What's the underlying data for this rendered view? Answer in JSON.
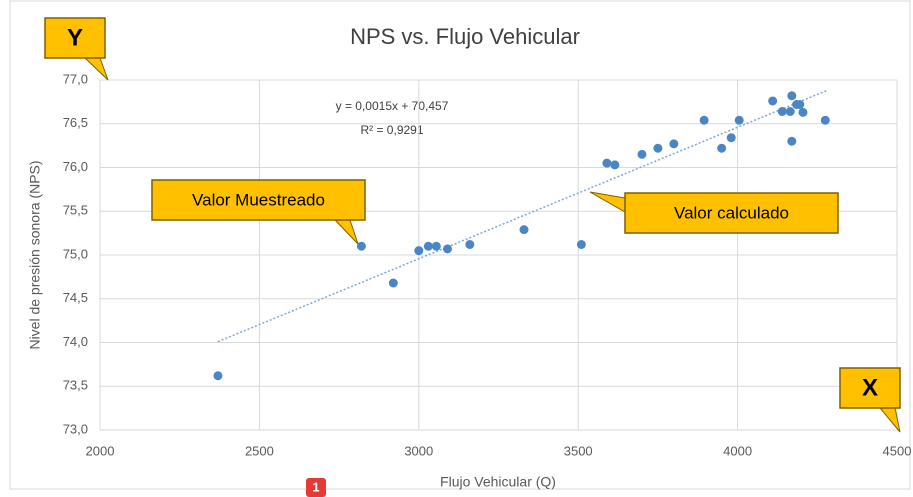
{
  "chart_data": {
    "type": "scatter",
    "title": "NPS vs. Flujo Vehicular",
    "x_label": "Flujo Vehicular (Q)",
    "y_label": "Nivel de presión sonora (NPS)",
    "color": "#4a86c5",
    "grid": true,
    "xlim": [
      2000,
      4500
    ],
    "xticks": [
      2000,
      2500,
      3000,
      3500,
      4000,
      4500
    ],
    "ylim": [
      73,
      77
    ],
    "yticks": [
      {
        "value": 73,
        "label": "73,0"
      },
      {
        "value": 73.5,
        "label": "73,5"
      },
      {
        "value": 74,
        "label": "74,0"
      },
      {
        "value": 74.5,
        "label": "74,5"
      },
      {
        "value": 75,
        "label": "75,0"
      },
      {
        "value": 75.5,
        "label": "75,5"
      },
      {
        "value": 76,
        "label": "76,0"
      },
      {
        "value": 76.5,
        "label": "76,5"
      },
      {
        "value": 77,
        "label": "77,0"
      }
    ],
    "x": [
      2370,
      2820,
      2920,
      3000,
      3030,
      3055,
      3090,
      3160,
      3330,
      3510,
      3590,
      3615,
      3700,
      3750,
      3800,
      3895,
      3950,
      3980,
      4005,
      4110,
      4140,
      4165,
      4170,
      4170,
      4185,
      4195,
      4205,
      4275
    ],
    "values": [
      73.62,
      75.1,
      74.68,
      75.05,
      75.1,
      75.1,
      75.07,
      75.12,
      75.29,
      75.12,
      76.05,
      76.03,
      76.15,
      76.22,
      76.27,
      76.54,
      76.22,
      76.34,
      76.54,
      76.76,
      76.64,
      76.64,
      76.82,
      76.3,
      76.72,
      76.72,
      76.63,
      76.54
    ],
    "trendline": {
      "x": [
        2370,
        4280
      ],
      "values": [
        74.01,
        76.88
      ],
      "color": "#7fa7d6"
    },
    "equation": "y = 0,0015x + 70,457",
    "r_squared": "R² = 0,9291",
    "annotations": [
      "Y",
      "X",
      "Valor Muestreado",
      "Valor calculado"
    ],
    "badge": "1"
  }
}
